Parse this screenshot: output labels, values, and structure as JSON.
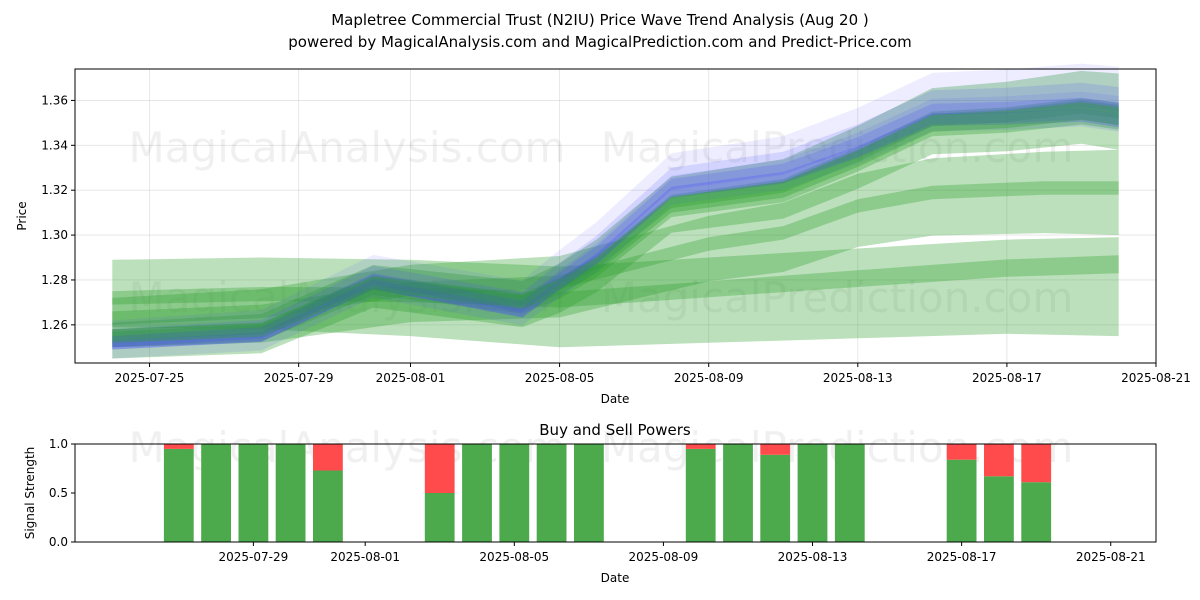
{
  "header": {
    "title_line1": "Mapletree Commercial Trust (N2IU) Price Wave Trend Analysis (Aug 20 )",
    "title_line2": "powered by MagicalAnalysis.com and MagicalPrediction.com and Predict-Price.com"
  },
  "watermarks": {
    "left": "MagicalAnalysis.com",
    "right": "MagicalPrediction.com"
  },
  "chart_data": [
    {
      "type": "area",
      "title": "Mapletree Commercial Trust (N2IU) Price Wave Trend Analysis (Aug 20 )",
      "xlabel": "Date",
      "ylabel": "Price",
      "xlim": [
        "2025-07-23",
        "2025-08-21"
      ],
      "ylim": [
        1.243,
        1.374
      ],
      "x_ticks": [
        "2025-07-25",
        "2025-07-29",
        "2025-08-01",
        "2025-08-05",
        "2025-08-09",
        "2025-08-13",
        "2025-08-17",
        "2025-08-21"
      ],
      "y_ticks": [
        1.26,
        1.28,
        1.3,
        1.32,
        1.34,
        1.36
      ],
      "colors": {
        "blue_wave": "#4b4bff",
        "green_wave": "#2ca02c"
      },
      "series": [
        {
          "kind": "blue_wave_center",
          "x": [
            "2025-07-24",
            "2025-07-28",
            "2025-07-31",
            "2025-08-04",
            "2025-08-05",
            "2025-08-06",
            "2025-08-08",
            "2025-08-11",
            "2025-08-13",
            "2025-08-15",
            "2025-08-17",
            "2025-08-19",
            "2025-08-20"
          ],
          "y": [
            1.252,
            1.256,
            1.28,
            1.268,
            1.281,
            1.293,
            1.323,
            1.33,
            1.342,
            1.357,
            1.358,
            1.36,
            1.358
          ]
        },
        {
          "kind": "green_wave_upper",
          "x": [
            "2025-07-24",
            "2025-07-28",
            "2025-07-31",
            "2025-08-04",
            "2025-08-05",
            "2025-08-06",
            "2025-08-08",
            "2025-08-11",
            "2025-08-13",
            "2025-08-15",
            "2025-08-17",
            "2025-08-19",
            "2025-08-20"
          ],
          "y": [
            1.255,
            1.258,
            1.279,
            1.271,
            1.278,
            1.288,
            1.315,
            1.322,
            1.336,
            1.352,
            1.354,
            1.358,
            1.356
          ]
        },
        {
          "kind": "green_wave_middle",
          "x": [
            "2025-07-24",
            "2025-07-28",
            "2025-08-01",
            "2025-08-05",
            "2025-08-09",
            "2025-08-11",
            "2025-08-13",
            "2025-08-15",
            "2025-08-18",
            "2025-08-20"
          ],
          "y": [
            1.262,
            1.265,
            1.275,
            1.278,
            1.295,
            1.3,
            1.312,
            1.318,
            1.32,
            1.32
          ]
        },
        {
          "kind": "green_wave_lower",
          "x": [
            "2025-07-24",
            "2025-07-28",
            "2025-08-01",
            "2025-08-05",
            "2025-08-09",
            "2025-08-13",
            "2025-08-17",
            "2025-08-20"
          ],
          "y": [
            1.275,
            1.276,
            1.275,
            1.272,
            1.276,
            1.28,
            1.284,
            1.285
          ]
        }
      ]
    },
    {
      "type": "bar",
      "title": "Buy and Sell Powers",
      "xlabel": "Date",
      "ylabel": "Signal Strength",
      "ylim": [
        0,
        1.0
      ],
      "y_ticks": [
        0.0,
        0.5,
        1.0
      ],
      "x_ticks": [
        "2025-07-29",
        "2025-08-01",
        "2025-08-05",
        "2025-08-09",
        "2025-08-13",
        "2025-08-17",
        "2025-08-21"
      ],
      "colors": {
        "buy": "#4caa4c",
        "sell": "#ff4b4b"
      },
      "series": [
        {
          "name": "Buy",
          "x": [
            "2025-07-27",
            "2025-07-28",
            "2025-07-29",
            "2025-07-30",
            "2025-07-31",
            "2025-08-03",
            "2025-08-04",
            "2025-08-05",
            "2025-08-06",
            "2025-08-07",
            "2025-08-10",
            "2025-08-11",
            "2025-08-12",
            "2025-08-13",
            "2025-08-14",
            "2025-08-17",
            "2025-08-18",
            "2025-08-19"
          ],
          "values": [
            0.95,
            1.0,
            1.0,
            1.0,
            0.73,
            0.5,
            1.0,
            1.0,
            1.0,
            1.0,
            0.95,
            1.0,
            0.89,
            1.0,
            1.0,
            0.84,
            0.67,
            0.61
          ]
        },
        {
          "name": "Sell",
          "x": [
            "2025-07-27",
            "2025-07-28",
            "2025-07-29",
            "2025-07-30",
            "2025-07-31",
            "2025-08-03",
            "2025-08-04",
            "2025-08-05",
            "2025-08-06",
            "2025-08-07",
            "2025-08-10",
            "2025-08-11",
            "2025-08-12",
            "2025-08-13",
            "2025-08-14",
            "2025-08-17",
            "2025-08-18",
            "2025-08-19"
          ],
          "values": [
            0.05,
            0.0,
            0.0,
            0.0,
            0.27,
            0.5,
            0.0,
            0.0,
            0.0,
            0.0,
            0.05,
            0.0,
            0.11,
            0.0,
            0.0,
            0.16,
            0.33,
            0.39
          ]
        }
      ]
    }
  ]
}
